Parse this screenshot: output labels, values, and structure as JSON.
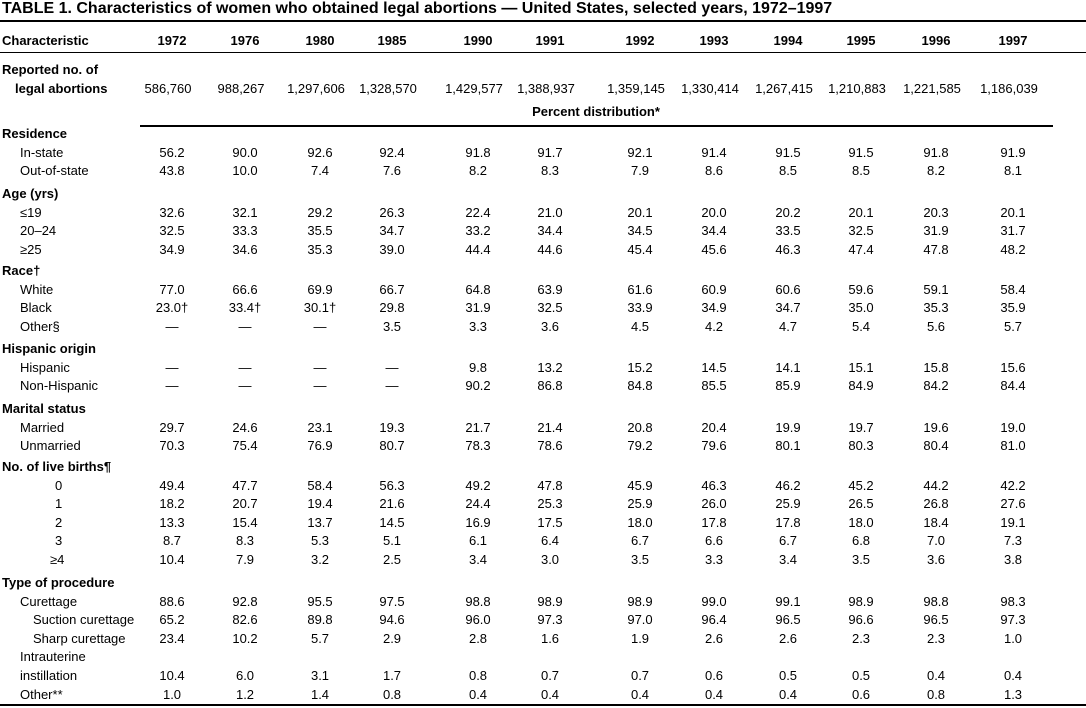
{
  "title": "TABLE 1. Characteristics of women who obtained legal abortions — United States, selected years, 1972–1997",
  "table": {
    "header": [
      "Characteristic",
      "1972",
      "1976",
      "1980",
      "1985",
      "1990",
      "1991",
      "1992",
      "1993",
      "1994",
      "1995",
      "1996",
      "1997"
    ],
    "top_row": {
      "label": [
        "Reported no. of",
        "legal abortions"
      ],
      "values": [
        "586,760",
        "988,267",
        "1,297,606",
        "1,328,570",
        "1,429,577",
        "1,388,937",
        "1,359,145",
        "1,330,414",
        "1,267,415",
        "1,210,883",
        "1,221,585",
        "1,186,039"
      ]
    },
    "subheader": "Percent distribution*",
    "sections": [
      {
        "heading": "Residence",
        "rows": [
          {
            "label": [
              "In-state"
            ],
            "values": [
              "56.2",
              "90.0",
              "92.6",
              "92.4",
              "91.8",
              "91.7",
              "92.1",
              "91.4",
              "91.5",
              "91.5",
              "91.8",
              "91.9"
            ]
          },
          {
            "label": [
              "Out-of-state"
            ],
            "values": [
              "43.8",
              "10.0",
              "7.4",
              "7.6",
              "8.2",
              "8.3",
              "7.9",
              "8.6",
              "8.5",
              "8.5",
              "8.2",
              "8.1"
            ]
          }
        ]
      },
      {
        "heading": "Age (yrs)",
        "rows": [
          {
            "label": [
              "≤19"
            ],
            "values": [
              "32.6",
              "32.1",
              "29.2",
              "26.3",
              "22.4",
              "21.0",
              "20.1",
              "20.0",
              "20.2",
              "20.1",
              "20.3",
              "20.1"
            ]
          },
          {
            "label": [
              "20–24"
            ],
            "values": [
              "32.5",
              "33.3",
              "35.5",
              "34.7",
              "33.2",
              "34.4",
              "34.5",
              "34.4",
              "33.5",
              "32.5",
              "31.9",
              "31.7"
            ]
          },
          {
            "label": [
              "≥25"
            ],
            "values": [
              "34.9",
              "34.6",
              "35.3",
              "39.0",
              "44.4",
              "44.6",
              "45.4",
              "45.6",
              "46.3",
              "47.4",
              "47.8",
              "48.2"
            ]
          }
        ]
      },
      {
        "heading": "Race†",
        "rows": [
          {
            "label": [
              "White"
            ],
            "values": [
              "77.0",
              "66.6",
              "69.9",
              "66.7",
              "64.8",
              "63.9",
              "61.6",
              "60.9",
              "60.6",
              "59.6",
              "59.1",
              "58.4"
            ]
          },
          {
            "label": [
              "Black"
            ],
            "values": [
              "23.0†",
              "33.4†",
              "30.1†",
              "29.8",
              "31.9",
              "32.5",
              "33.9",
              "34.9",
              "34.7",
              "35.0",
              "35.3",
              "35.9"
            ]
          },
          {
            "label": [
              "Other§"
            ],
            "values": [
              "—",
              "—",
              "—",
              "3.5",
              "3.3",
              "3.6",
              "4.5",
              "4.2",
              "4.7",
              "5.4",
              "5.6",
              "5.7"
            ]
          }
        ]
      },
      {
        "heading": "Hispanic origin",
        "rows": [
          {
            "label": [
              "Hispanic"
            ],
            "values": [
              "—",
              "—",
              "—",
              "—",
              "9.8",
              "13.2",
              "15.2",
              "14.5",
              "14.1",
              "15.1",
              "15.8",
              "15.6"
            ]
          },
          {
            "label": [
              "Non-Hispanic"
            ],
            "values": [
              "—",
              "—",
              "—",
              "—",
              "90.2",
              "86.8",
              "84.8",
              "85.5",
              "85.9",
              "84.9",
              "84.2",
              "84.4"
            ]
          }
        ]
      },
      {
        "heading": "Marital status",
        "rows": [
          {
            "label": [
              "Married"
            ],
            "values": [
              "29.7",
              "24.6",
              "23.1",
              "19.3",
              "21.7",
              "21.4",
              "20.8",
              "20.4",
              "19.9",
              "19.7",
              "19.6",
              "19.0"
            ]
          },
          {
            "label": [
              "Unmarried"
            ],
            "values": [
              "70.3",
              "75.4",
              "76.9",
              "80.7",
              "78.3",
              "78.6",
              "79.2",
              "79.6",
              "80.1",
              "80.3",
              "80.4",
              "81.0"
            ]
          }
        ]
      },
      {
        "heading": "No. of live births¶",
        "rows": [
          {
            "label": [
              "0"
            ],
            "values": [
              "49.4",
              "47.7",
              "58.4",
              "56.3",
              "49.2",
              "47.8",
              "45.9",
              "46.3",
              "46.2",
              "45.2",
              "44.2",
              "42.2"
            ]
          },
          {
            "label": [
              "1"
            ],
            "values": [
              "18.2",
              "20.7",
              "19.4",
              "21.6",
              "24.4",
              "25.3",
              "25.9",
              "26.0",
              "25.9",
              "26.5",
              "26.8",
              "27.6"
            ]
          },
          {
            "label": [
              "2"
            ],
            "values": [
              "13.3",
              "15.4",
              "13.7",
              "14.5",
              "16.9",
              "17.5",
              "18.0",
              "17.8",
              "17.8",
              "18.0",
              "18.4",
              "19.1"
            ]
          },
          {
            "label": [
              "3"
            ],
            "values": [
              "8.7",
              "8.3",
              "5.3",
              "5.1",
              "6.1",
              "6.4",
              "6.7",
              "6.6",
              "6.7",
              "6.8",
              "7.0",
              "7.3"
            ]
          },
          {
            "label": [
              "≥4"
            ],
            "values": [
              "10.4",
              "7.9",
              "3.2",
              "2.5",
              "3.4",
              "3.0",
              "3.5",
              "3.3",
              "3.4",
              "3.5",
              "3.6",
              "3.8"
            ]
          }
        ]
      },
      {
        "heading": "Type of procedure",
        "rows": [
          {
            "label": [
              "Curettage"
            ],
            "values": [
              "88.6",
              "92.8",
              "95.5",
              "97.5",
              "98.8",
              "98.9",
              "98.9",
              "99.0",
              "99.1",
              "98.9",
              "98.8",
              "98.3"
            ]
          },
          {
            "label": [
              "Suction curettage"
            ],
            "values": [
              "65.2",
              "82.6",
              "89.8",
              "94.6",
              "96.0",
              "97.3",
              "97.0",
              "96.4",
              "96.5",
              "96.6",
              "96.5",
              "97.3"
            ]
          },
          {
            "label": [
              "Sharp curettage"
            ],
            "values": [
              "23.4",
              "10.2",
              "5.7",
              "2.9",
              "2.8",
              "1.6",
              "1.9",
              "2.6",
              "2.6",
              "2.3",
              "2.3",
              "1.0"
            ]
          },
          {
            "label": [
              "Intrauterine",
              "instillation"
            ],
            "values": [
              "10.4",
              "6.0",
              "3.1",
              "1.7",
              "0.8",
              "0.7",
              "0.7",
              "0.6",
              "0.5",
              "0.5",
              "0.4",
              "0.4"
            ]
          },
          {
            "label": [
              "Other**"
            ],
            "values": [
              "1.0",
              "1.2",
              "1.4",
              "0.8",
              "0.4",
              "0.4",
              "0.4",
              "0.4",
              "0.4",
              "0.6",
              "0.8",
              "1.3"
            ]
          }
        ]
      }
    ]
  }
}
